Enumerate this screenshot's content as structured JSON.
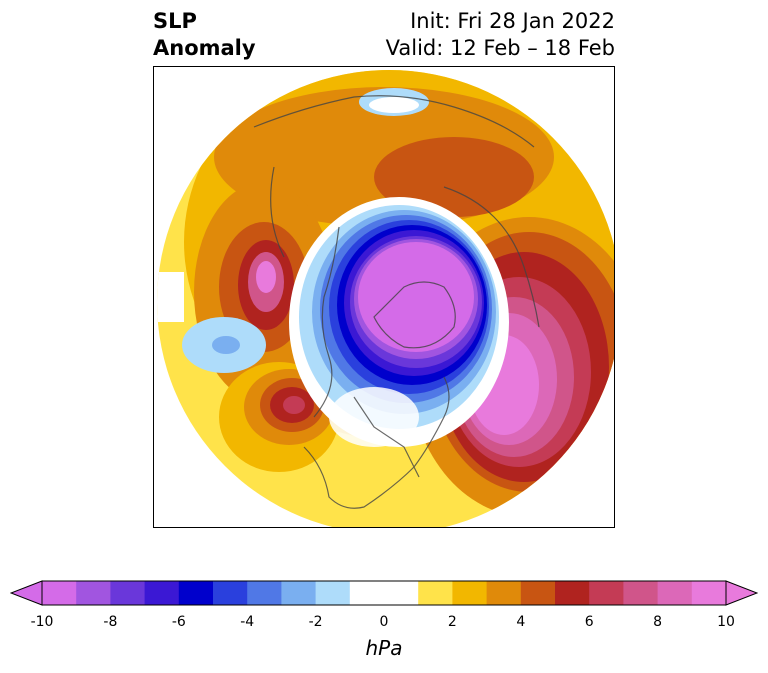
{
  "title": {
    "line1": "SLP",
    "line2": "Anomaly"
  },
  "init": "Init: Fri 28 Jan 2022",
  "valid": "Valid: 12 Feb – 18 Feb",
  "colorbar": {
    "label": "hPa",
    "unit": "hPa",
    "min": -10,
    "max": 10,
    "step": 1,
    "extend": "both",
    "tick_labels": [
      "-10",
      "-8",
      "-6",
      "-4",
      "-2",
      "0",
      "2",
      "4",
      "6",
      "8",
      "10"
    ],
    "colors": [
      "#d46be8",
      "#a155e0",
      "#6a37da",
      "#3b18d4",
      "#0000cc",
      "#2a40dd",
      "#5078e6",
      "#7aaff0",
      "#aedcfa",
      "#ffffff",
      "#ffffff",
      "#ffe34a",
      "#f2b700",
      "#e08a0a",
      "#c85512",
      "#b0231f",
      "#c43b55",
      "#d0558a",
      "#dc68b8",
      "#e87adc"
    ],
    "low_extend_color": "#d46be8",
    "high_extend_color": "#e87adc"
  }
}
